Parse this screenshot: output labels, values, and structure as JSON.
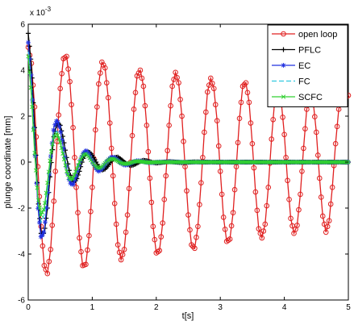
{
  "chart_data": {
    "type": "line",
    "xlabel": "t[s]",
    "ylabel": "plunge coordinate [mm]",
    "y_exponent_label": "x 10",
    "y_exponent_power": "-3",
    "xlim": [
      0,
      5
    ],
    "ylim": [
      -6,
      6
    ],
    "xticks": [
      "0",
      "1",
      "2",
      "3",
      "4",
      "5"
    ],
    "yticks": [
      "-6",
      "-4",
      "-2",
      "0",
      "2",
      "4",
      "6"
    ],
    "grid": false,
    "legend_position": "top-right",
    "series": [
      {
        "name": "open loop",
        "color": "#e02020",
        "marker": "circle",
        "x": [
          0,
          0.05,
          0.1,
          0.15,
          0.2,
          0.25,
          0.3,
          0.35,
          0.4,
          0.45,
          0.5,
          0.55,
          0.6,
          0.65,
          0.7,
          0.75,
          0.8,
          0.85,
          0.9,
          0.95,
          1.0,
          1.05,
          1.1,
          1.15,
          1.2,
          1.25,
          1.3,
          1.35,
          1.4,
          1.45,
          1.5,
          1.55,
          1.6,
          1.65,
          1.7,
          1.75,
          1.8,
          1.85,
          1.9,
          1.95,
          2.0,
          2.05,
          2.1,
          2.15,
          2.2,
          2.25,
          2.3,
          2.35,
          2.4,
          2.45,
          2.5,
          2.55,
          2.6,
          2.65,
          2.7,
          2.75,
          2.8,
          2.85,
          2.9,
          2.95,
          3.0,
          3.05,
          3.1,
          3.15,
          3.2,
          3.25,
          3.3,
          3.35,
          3.4,
          3.45,
          3.5,
          3.55,
          3.6,
          3.65,
          3.7,
          3.75,
          3.8,
          3.85,
          3.9,
          3.95,
          4.0,
          4.05,
          4.1,
          4.15,
          4.2,
          4.25,
          4.3,
          4.35,
          4.4,
          4.45,
          4.5,
          4.55,
          4.6,
          4.65,
          4.7,
          4.75,
          4.8,
          4.85,
          4.9,
          4.95,
          5.0
        ],
        "y": [
          5.0,
          4.3,
          2.4,
          -0.2,
          -2.8,
          -4.5,
          -4.85,
          -3.8,
          -1.7,
          0.9,
          3.2,
          4.5,
          4.6,
          3.5,
          1.5,
          -1.1,
          -3.3,
          -4.5,
          -4.45,
          -3.2,
          -1.1,
          1.4,
          3.4,
          4.35,
          4.1,
          2.8,
          0.6,
          -1.8,
          -3.6,
          -4.25,
          -3.8,
          -2.3,
          0.0,
          2.3,
          3.75,
          4.0,
          3.3,
          1.6,
          -0.7,
          -2.8,
          -3.95,
          -3.85,
          -2.65,
          -0.6,
          1.6,
          3.3,
          3.9,
          3.45,
          2.0,
          -0.2,
          -2.3,
          -3.6,
          -3.75,
          -2.8,
          -0.9,
          1.3,
          3.05,
          3.65,
          3.2,
          1.8,
          -0.4,
          -2.4,
          -3.45,
          -3.35,
          -2.2,
          -0.2,
          1.9,
          3.3,
          3.45,
          2.6,
          0.8,
          -1.3,
          -2.9,
          -3.3,
          -2.7,
          -1.1,
          1.0,
          2.7,
          3.15,
          2.7,
          1.2,
          -0.8,
          -2.45,
          -3.1,
          -2.75,
          -1.4,
          0.6,
          2.3,
          3.0,
          2.65,
          1.3,
          -0.7,
          -2.35,
          -3.05,
          -2.55,
          -1.1,
          0.8,
          2.3,
          2.9,
          2.8,
          2.9
        ]
      },
      {
        "name": "PFLC",
        "color": "#000000",
        "marker": "plus",
        "x": [
          0,
          0.05,
          0.1,
          0.15,
          0.2,
          0.25,
          0.3,
          0.35,
          0.4,
          0.45,
          0.5,
          0.55,
          0.6,
          0.65,
          0.7,
          0.75,
          0.8,
          0.85,
          0.9,
          0.95,
          1.0,
          1.05,
          1.1,
          1.15,
          1.2,
          1.25,
          1.3,
          1.35,
          1.4,
          1.45,
          1.5,
          1.55,
          1.6,
          1.65,
          1.7,
          1.75,
          1.8,
          1.85,
          1.9,
          1.95,
          2.0,
          2.2,
          2.4,
          2.6,
          2.8,
          3.0,
          3.5,
          4.0,
          4.5,
          5.0
        ],
        "y": [
          5.6,
          4.2,
          1.5,
          -1.5,
          -3.1,
          -3.1,
          -2.0,
          -0.3,
          1.1,
          1.7,
          1.6,
          1.0,
          0.2,
          -0.5,
          -0.85,
          -0.8,
          -0.4,
          0.1,
          0.4,
          0.45,
          0.3,
          0.05,
          -0.2,
          -0.35,
          -0.3,
          -0.15,
          0.05,
          0.2,
          0.22,
          0.12,
          0.0,
          -0.1,
          -0.15,
          -0.12,
          -0.05,
          0.03,
          0.08,
          0.06,
          0.02,
          -0.02,
          -0.04,
          0.02,
          -0.02,
          0.01,
          0.0,
          0.0,
          0.0,
          0.0,
          0.0,
          0.0
        ]
      },
      {
        "name": "EC",
        "color": "#2030e0",
        "marker": "asterisk",
        "x": [
          0,
          0.05,
          0.1,
          0.15,
          0.2,
          0.25,
          0.3,
          0.35,
          0.4,
          0.45,
          0.5,
          0.55,
          0.6,
          0.65,
          0.7,
          0.75,
          0.8,
          0.85,
          0.9,
          0.95,
          1.0,
          1.05,
          1.1,
          1.15,
          1.2,
          1.25,
          1.3,
          1.35,
          1.4,
          1.45,
          1.5,
          1.55,
          1.6,
          1.65,
          1.7,
          1.75,
          1.8,
          1.85,
          1.9,
          1.95,
          2.0,
          2.2,
          2.4,
          2.6,
          2.8,
          3.0,
          3.5,
          4.0,
          4.5,
          5.0
        ],
        "y": [
          5.2,
          3.6,
          0.8,
          -1.9,
          -3.3,
          -3.0,
          -1.6,
          0.2,
          1.5,
          1.85,
          1.4,
          0.6,
          -0.3,
          -0.9,
          -1.0,
          -0.6,
          -0.05,
          0.35,
          0.5,
          0.35,
          0.05,
          -0.25,
          -0.4,
          -0.3,
          -0.1,
          0.1,
          0.22,
          0.2,
          0.08,
          -0.05,
          -0.13,
          -0.12,
          -0.06,
          0.02,
          0.06,
          0.05,
          0.02,
          -0.01,
          -0.03,
          -0.02,
          0.0,
          0.01,
          0.0,
          0.0,
          0.0,
          0.0,
          0.0,
          0.0,
          0.0,
          0.0
        ]
      },
      {
        "name": "FC",
        "color": "#30c8e0",
        "marker": "none",
        "x": [
          0,
          0.05,
          0.1,
          0.15,
          0.2,
          0.25,
          0.3,
          0.35,
          0.4,
          0.45,
          0.5,
          0.55,
          0.6,
          0.65,
          0.7,
          0.75,
          0.8,
          0.85,
          0.9,
          0.95,
          1.0,
          1.05,
          1.1,
          1.15,
          1.2,
          1.25,
          1.3,
          1.35,
          1.4,
          1.45,
          1.5,
          1.55,
          1.6,
          1.65,
          1.7,
          1.75,
          1.8,
          1.85,
          1.9,
          1.95,
          2.0,
          2.2,
          2.4,
          2.6,
          2.8,
          3.0,
          3.5,
          4.0,
          4.5,
          5.0
        ],
        "y": [
          4.8,
          3.2,
          0.6,
          -1.6,
          -2.6,
          -2.3,
          -1.1,
          0.3,
          1.2,
          1.35,
          0.9,
          0.3,
          -0.4,
          -0.8,
          -0.75,
          -0.4,
          0.0,
          0.3,
          0.4,
          0.25,
          0.0,
          -0.2,
          -0.3,
          -0.22,
          -0.05,
          0.1,
          0.18,
          0.14,
          0.05,
          -0.05,
          -0.1,
          -0.08,
          -0.03,
          0.02,
          0.05,
          0.04,
          0.01,
          -0.01,
          -0.02,
          -0.01,
          0.0,
          0.0,
          0.0,
          0.0,
          0.0,
          0.0,
          0.0,
          0.0,
          0.0,
          0.0
        ]
      },
      {
        "name": "SCFC",
        "color": "#30d030",
        "marker": "x",
        "x": [
          0,
          0.05,
          0.1,
          0.15,
          0.2,
          0.25,
          0.3,
          0.35,
          0.4,
          0.45,
          0.5,
          0.55,
          0.6,
          0.65,
          0.7,
          0.75,
          0.8,
          0.85,
          0.9,
          0.95,
          1.0,
          1.05,
          1.1,
          1.15,
          1.2,
          1.25,
          1.3,
          1.35,
          1.4,
          1.45,
          1.5,
          1.55,
          1.6,
          1.65,
          1.7,
          1.75,
          1.8,
          1.85,
          1.9,
          1.95,
          2.0,
          2.2,
          2.4,
          2.6,
          2.8,
          3.0,
          3.5,
          4.0,
          4.5,
          5.0
        ],
        "y": [
          4.6,
          2.9,
          0.4,
          -1.5,
          -2.3,
          -2.0,
          -0.9,
          0.3,
          1.1,
          1.25,
          0.85,
          0.25,
          -0.4,
          -0.75,
          -0.7,
          -0.35,
          0.0,
          0.28,
          0.36,
          0.22,
          0.0,
          -0.18,
          -0.27,
          -0.2,
          -0.05,
          0.08,
          0.15,
          0.12,
          0.04,
          -0.04,
          -0.08,
          -0.07,
          -0.03,
          0.02,
          0.04,
          0.03,
          0.01,
          -0.01,
          -0.02,
          -0.01,
          0.0,
          0.0,
          0.0,
          0.0,
          0.0,
          0.0,
          0.0,
          0.0,
          0.0,
          0.0
        ]
      }
    ]
  }
}
